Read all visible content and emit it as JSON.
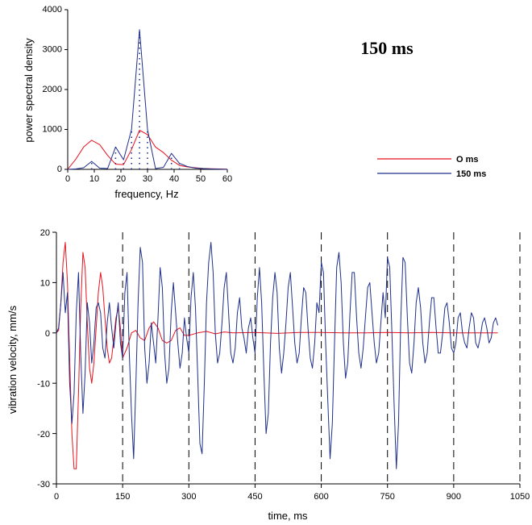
{
  "annotation": "150 ms",
  "colors": {
    "red": "#e8121c",
    "blue": "#1f2f8a",
    "axis": "#000000"
  },
  "chart_data": [
    {
      "type": "line",
      "xlabel": "frequency,  Hz",
      "ylabel": "power spectral density",
      "xlim": [
        0,
        60
      ],
      "ylim": [
        0,
        4000
      ],
      "xticks": [
        0,
        10,
        20,
        30,
        40,
        50,
        60
      ],
      "yticks": [
        0,
        1000,
        2000,
        3000,
        4000
      ],
      "grid": false,
      "legend_position": "right",
      "series": [
        {
          "name": "O ms",
          "color": "#e8121c",
          "x": [
            0,
            3,
            6,
            9,
            12,
            15,
            18,
            21,
            24,
            27,
            30,
            33,
            36,
            39,
            42,
            45,
            48,
            51,
            54,
            57,
            60
          ],
          "y": [
            0,
            250,
            560,
            730,
            620,
            350,
            130,
            120,
            500,
            980,
            870,
            560,
            420,
            230,
            100,
            60,
            40,
            20,
            15,
            10,
            5
          ]
        },
        {
          "name": "150 ms",
          "color": "#1f2f8a",
          "x": [
            0,
            3,
            6,
            9,
            12,
            15,
            18,
            21,
            24,
            27,
            30,
            33,
            36,
            39,
            42,
            45,
            48,
            51,
            54,
            57,
            60
          ],
          "y": [
            0,
            10,
            40,
            200,
            30,
            20,
            560,
            240,
            1000,
            3500,
            1000,
            20,
            50,
            400,
            150,
            70,
            30,
            20,
            10,
            5,
            0
          ]
        }
      ],
      "dotted_stems": [
        {
          "x": 27,
          "y": 3500
        },
        {
          "x": 24,
          "y": 1000
        },
        {
          "x": 30,
          "y": 1000
        },
        {
          "x": 18,
          "y": 560
        },
        {
          "x": 21,
          "y": 240
        },
        {
          "x": 39,
          "y": 400
        },
        {
          "x": 9,
          "y": 200
        },
        {
          "x": 42,
          "y": 150
        }
      ]
    },
    {
      "type": "line",
      "xlabel": "time, ms",
      "ylabel": "vibration velocity, mm/s",
      "xlim": [
        0,
        1050
      ],
      "ylim": [
        -30,
        20
      ],
      "xticks": [
        0,
        150,
        300,
        450,
        600,
        750,
        900,
        1050
      ],
      "yticks": [
        -30,
        -20,
        -10,
        0,
        10,
        20
      ],
      "grid": false,
      "vertical_dashed_lines": [
        150,
        300,
        450,
        600,
        750,
        900,
        1050
      ],
      "series": [
        {
          "name": "O ms",
          "color": "#e8121c",
          "x": [
            0,
            5,
            10,
            15,
            20,
            25,
            30,
            35,
            40,
            45,
            50,
            55,
            60,
            65,
            70,
            75,
            80,
            85,
            90,
            95,
            100,
            105,
            110,
            115,
            120,
            125,
            130,
            135,
            140,
            145,
            150,
            160,
            170,
            180,
            190,
            200,
            210,
            220,
            230,
            240,
            250,
            260,
            270,
            280,
            290,
            300,
            320,
            340,
            360,
            380,
            400,
            450,
            500,
            550,
            600,
            650,
            700,
            750,
            800,
            850,
            900,
            950,
            1000
          ],
          "y": [
            0,
            0.5,
            6,
            14,
            18,
            10,
            -5,
            -20,
            -27,
            -27,
            -12,
            5,
            16,
            13,
            2,
            -7,
            -10,
            -6,
            1,
            8,
            12,
            9,
            3,
            -3,
            -6,
            -5,
            -1,
            3,
            5,
            1,
            -5,
            -3,
            0,
            0.5,
            -1,
            -1.5,
            1,
            2.2,
            1,
            -1.5,
            -2,
            -1.5,
            0.5,
            1,
            -0.5,
            -0.5,
            0,
            0.3,
            -0.2,
            0.2,
            0,
            0.1,
            -0.1,
            0.1,
            0.1,
            0,
            0,
            0.1,
            0,
            0.1,
            0,
            0,
            0
          ]
        },
        {
          "name": "150 ms",
          "color": "#1f2f8a",
          "x": [
            0,
            5,
            10,
            15,
            20,
            25,
            30,
            35,
            40,
            45,
            50,
            55,
            60,
            65,
            70,
            75,
            80,
            85,
            90,
            95,
            100,
            105,
            110,
            115,
            120,
            125,
            130,
            135,
            140,
            145,
            150,
            155,
            160,
            165,
            170,
            175,
            180,
            185,
            190,
            195,
            200,
            205,
            210,
            215,
            220,
            225,
            230,
            235,
            240,
            245,
            250,
            255,
            260,
            265,
            270,
            275,
            280,
            285,
            290,
            295,
            300,
            305,
            310,
            315,
            320,
            325,
            330,
            335,
            340,
            345,
            350,
            355,
            360,
            365,
            370,
            375,
            380,
            385,
            390,
            395,
            400,
            405,
            410,
            415,
            420,
            425,
            430,
            435,
            440,
            445,
            450,
            455,
            460,
            465,
            470,
            475,
            480,
            485,
            490,
            495,
            500,
            505,
            510,
            515,
            520,
            525,
            530,
            535,
            540,
            545,
            550,
            555,
            560,
            565,
            570,
            575,
            580,
            585,
            590,
            595,
            600,
            605,
            610,
            615,
            620,
            625,
            630,
            635,
            640,
            645,
            650,
            655,
            660,
            665,
            670,
            675,
            680,
            685,
            690,
            695,
            700,
            705,
            710,
            715,
            720,
            725,
            730,
            735,
            740,
            745,
            750,
            755,
            760,
            765,
            770,
            775,
            780,
            785,
            790,
            795,
            800,
            805,
            810,
            815,
            820,
            825,
            830,
            835,
            840,
            845,
            850,
            855,
            860,
            865,
            870,
            875,
            880,
            885,
            890,
            895,
            900,
            905,
            910,
            915,
            920,
            925,
            930,
            935,
            940,
            945,
            950,
            955,
            960,
            965,
            970,
            975,
            980,
            985,
            990,
            995,
            1000
          ],
          "y": [
            0,
            1,
            6,
            12,
            4,
            8,
            -10,
            -18,
            -12,
            4,
            12,
            -4,
            -16,
            -8,
            6,
            2,
            -6,
            -2,
            5,
            6,
            4,
            -3,
            -5,
            2,
            6,
            1,
            -3,
            2,
            6,
            -2,
            -5,
            8,
            12,
            -4,
            -16,
            -25,
            -10,
            6,
            17,
            14,
            -3,
            -10,
            -6,
            2,
            -2,
            -6,
            3,
            13,
            9,
            -4,
            -10,
            -7,
            4,
            10,
            4,
            -2,
            -7,
            -4,
            3,
            -1,
            -4,
            7,
            12,
            5,
            -8,
            -22,
            -24,
            -10,
            6,
            14,
            18,
            12,
            0,
            -6,
            -4,
            2,
            9,
            12,
            4,
            -4,
            -6,
            -3,
            4,
            7,
            1,
            -1,
            -4,
            1,
            3,
            -1,
            -4,
            7,
            13,
            6,
            -8,
            -20,
            -16,
            -2,
            7,
            12,
            8,
            -3,
            -8,
            -4,
            2,
            9,
            12,
            5,
            -2,
            -6,
            -4,
            3,
            9,
            8,
            1,
            -5,
            -7,
            -2,
            6,
            4,
            14,
            12,
            -2,
            -14,
            -25,
            -18,
            -2,
            13,
            16,
            10,
            -2,
            -9,
            -6,
            4,
            12,
            12,
            3,
            -4,
            -7,
            -3,
            3,
            9,
            10,
            4,
            -2,
            -6,
            -4,
            2,
            8,
            3,
            15,
            13,
            0,
            -14,
            -27,
            -18,
            2,
            15,
            14,
            3,
            -6,
            -8,
            -2,
            6,
            9,
            5,
            -2,
            -6,
            -4,
            2,
            7,
            7,
            1,
            -4,
            -4,
            0,
            5,
            6,
            2,
            -3,
            -4,
            -2,
            3,
            4,
            0,
            -2,
            -3,
            1,
            4,
            3,
            -2,
            -3,
            -1,
            2,
            3,
            1,
            -2,
            -1,
            2,
            3,
            1.5
          ]
        }
      ]
    }
  ]
}
